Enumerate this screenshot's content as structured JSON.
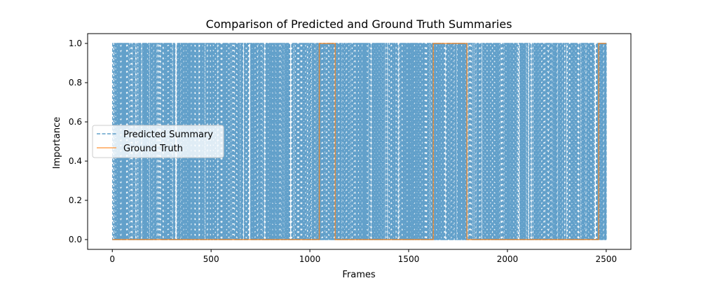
{
  "chart_data": {
    "type": "line",
    "title": "Comparison of Predicted and Ground Truth Summaries",
    "xlabel": "Frames",
    "ylabel": "Importance",
    "xlim": [
      -125,
      2625
    ],
    "ylim": [
      -0.05,
      1.05
    ],
    "x_ticks": [
      0,
      500,
      1000,
      1500,
      2000,
      2500
    ],
    "y_ticks": [
      "0.0",
      "0.2",
      "0.4",
      "0.6",
      "0.8",
      "1.0"
    ],
    "grid": false,
    "legend_position": "center-left",
    "colors": {
      "predicted": "#1f77b4",
      "ground_truth": "#ff7f0e"
    },
    "series": [
      {
        "name": "Predicted Summary",
        "style": "dashed",
        "alpha": 0.7,
        "description_of_values": "binary 0/1 signal with very frequent switching over frames 0–2500",
        "n_frames": 2500
      },
      {
        "name": "Ground Truth",
        "style": "solid",
        "segments": [
          {
            "from": 0,
            "to": 1048,
            "value": 0
          },
          {
            "from": 1048,
            "to": 1128,
            "value": 1
          },
          {
            "from": 1128,
            "to": 1625,
            "value": 0
          },
          {
            "from": 1625,
            "to": 1795,
            "value": 1
          },
          {
            "from": 1795,
            "to": 2462,
            "value": 0
          },
          {
            "from": 2462,
            "to": 2500,
            "value": 1
          }
        ]
      }
    ]
  }
}
